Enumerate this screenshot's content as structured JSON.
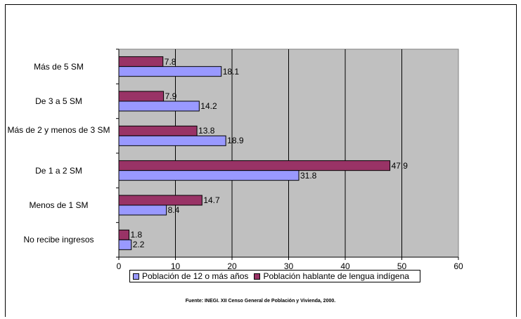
{
  "chart_data": {
    "type": "bar",
    "orientation": "horizontal",
    "categories": [
      "Más de 5 SM",
      "De 3 a 5 SM",
      "Más de 2 y menos de 3 SM",
      "De 1 a 2 SM",
      "Menos de 1 SM",
      "No recibe ingresos"
    ],
    "series": [
      {
        "name": "Población hablante de lengua indígena",
        "color": "#993366",
        "values": [
          7.8,
          7.9,
          13.8,
          47.9,
          14.7,
          1.8
        ]
      },
      {
        "name": "Población de 12 o más años",
        "color": "#9999ff",
        "values": [
          18.1,
          14.2,
          18.9,
          31.8,
          8.4,
          2.2
        ]
      }
    ],
    "value_labels": [
      [
        "7.8",
        "7.9",
        "13.8",
        "47.9",
        "14.7",
        "1.8"
      ],
      [
        "18.1",
        "14.2",
        "18.9",
        "31.8",
        "8.4",
        "2.2"
      ]
    ],
    "xlim": [
      0,
      60
    ],
    "xticks": [
      "0",
      "10",
      "20",
      "30",
      "40",
      "50",
      "60"
    ],
    "grid": true,
    "plot_background": "#c0c0c0",
    "legend_position": "bottom",
    "legend_order": [
      "Población de 12 o más años",
      "Población hablante de lengua indígena"
    ]
  },
  "source_note": "Fuente: INEGI. XII Censo General de Población y Vivienda, 2000."
}
